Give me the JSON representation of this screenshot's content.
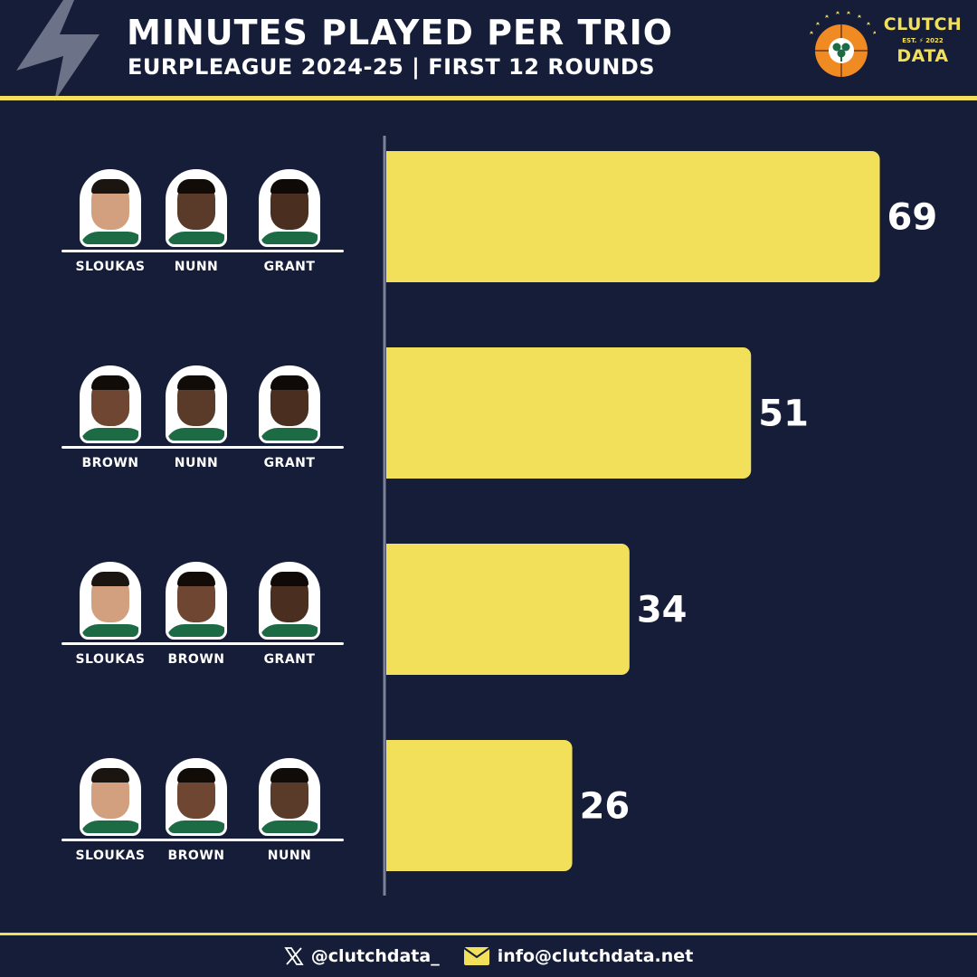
{
  "header": {
    "title": "MINUTES PLAYED PER TRIO",
    "subtitle": "EURPLEAGUE 2024-25 | FIRST 12 ROUNDS",
    "club_logo_icon": "panathinaikos-clover-logo",
    "brand_line1": "CLUTCH",
    "brand_est": "EST. ⚡ 2022",
    "brand_line2": "DATA"
  },
  "colors": {
    "background": "#161d38",
    "accent_yellow": "#f2e05a",
    "axis": "#7b8196",
    "text": "#ffffff",
    "bolt": "#6c7388",
    "club_orange": "#f08a22",
    "jersey_green": "#1d6b45"
  },
  "chart_data": {
    "type": "bar",
    "orientation": "horizontal",
    "categories": [
      "SLOUKAS / NUNN / GRANT",
      "BROWN / NUNN / GRANT",
      "SLOUKAS / BROWN / GRANT",
      "SLOUKAS / BROWN / NUNN"
    ],
    "values": [
      69,
      51,
      34,
      26
    ],
    "value_labels": [
      "69",
      "51",
      "34",
      "26"
    ],
    "trios": [
      {
        "players": [
          {
            "name": "SLOUKAS",
            "skin": "#d2a07e",
            "hair": "#1b1511"
          },
          {
            "name": "NUNN",
            "skin": "#5a3a28",
            "hair": "#120c08"
          },
          {
            "name": "GRANT",
            "skin": "#4a2f20",
            "hair": "#0f0a07"
          }
        ]
      },
      {
        "players": [
          {
            "name": "BROWN",
            "skin": "#6e4631",
            "hair": "#120c08"
          },
          {
            "name": "NUNN",
            "skin": "#5a3a28",
            "hair": "#120c08"
          },
          {
            "name": "GRANT",
            "skin": "#4a2f20",
            "hair": "#0f0a07"
          }
        ]
      },
      {
        "players": [
          {
            "name": "SLOUKAS",
            "skin": "#d2a07e",
            "hair": "#1b1511"
          },
          {
            "name": "BROWN",
            "skin": "#6e4631",
            "hair": "#120c08"
          },
          {
            "name": "GRANT",
            "skin": "#4a2f20",
            "hair": "#0f0a07"
          }
        ]
      },
      {
        "players": [
          {
            "name": "SLOUKAS",
            "skin": "#d2a07e",
            "hair": "#1b1511"
          },
          {
            "name": "BROWN",
            "skin": "#6e4631",
            "hair": "#120c08"
          },
          {
            "name": "NUNN",
            "skin": "#5a3a28",
            "hair": "#120c08"
          }
        ]
      }
    ],
    "xlim": [
      0,
      75
    ],
    "grid": false,
    "legend": "none"
  },
  "footer": {
    "x_icon": "x-logo-icon",
    "handle": "@clutchdata_",
    "mail_icon": "envelope-icon",
    "email": "info@clutchdata.net"
  }
}
